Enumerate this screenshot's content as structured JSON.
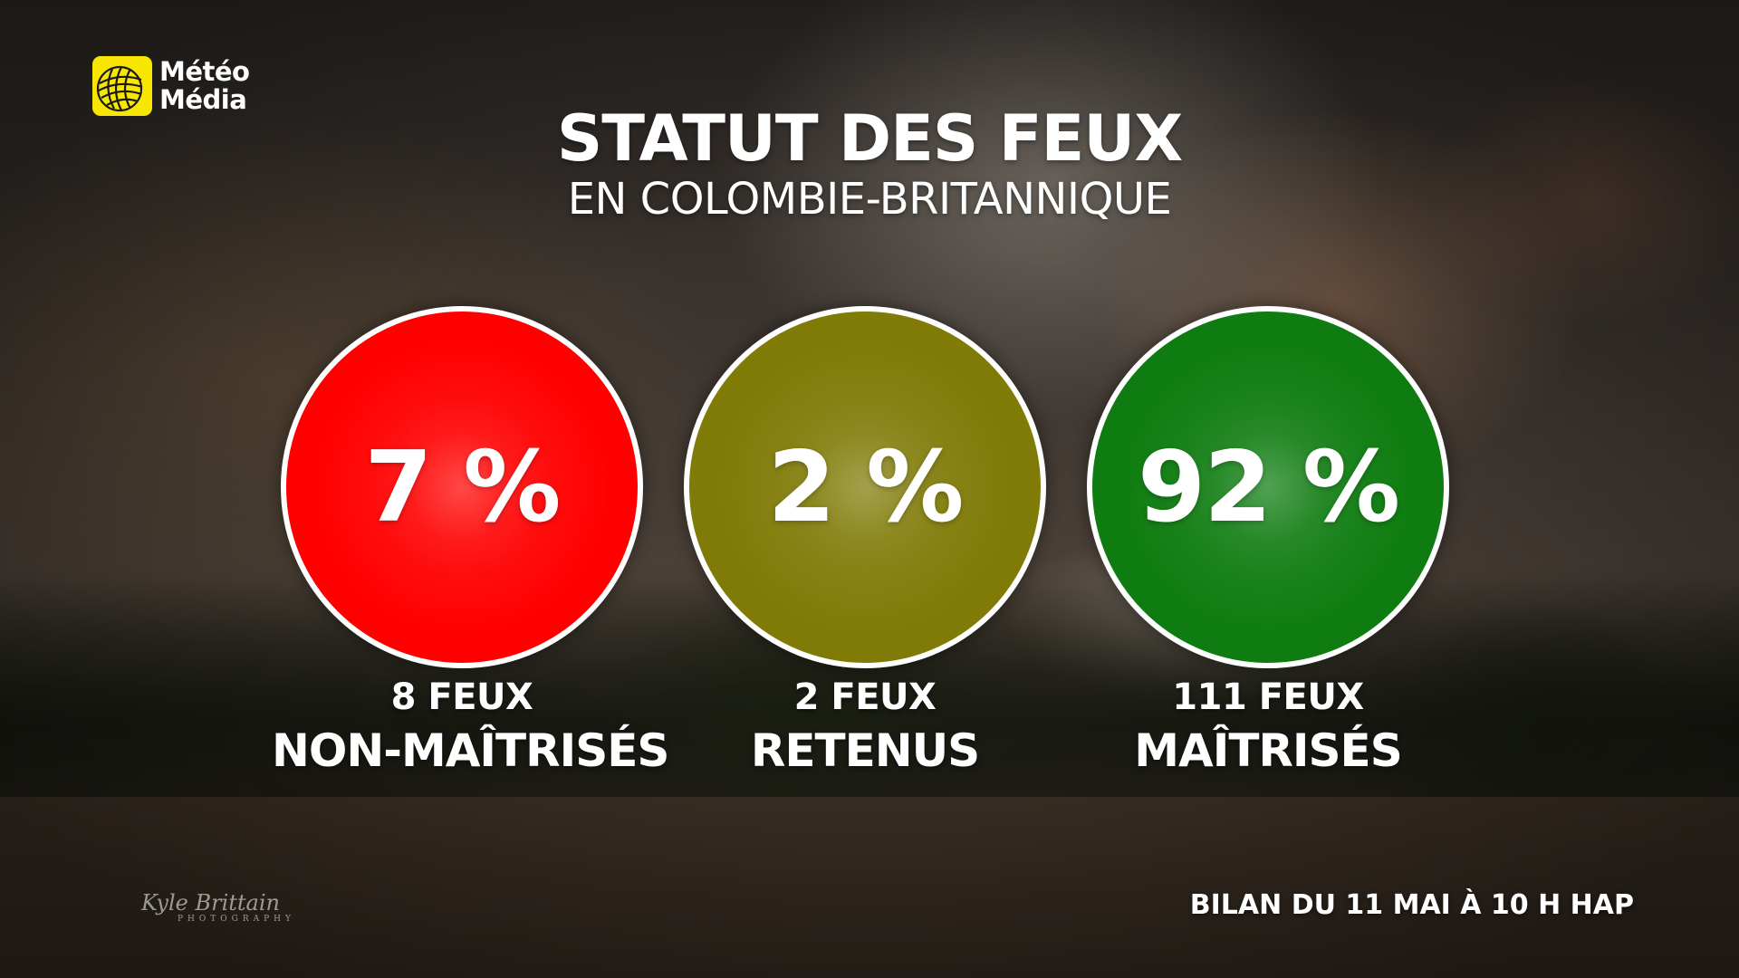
{
  "brand": {
    "line1": "Météo",
    "line2": "Média",
    "logo_color": "#f6e600"
  },
  "header": {
    "title": "STATUT DES FEUX",
    "subtitle": "EN COLOMBIE-BRITANNIQUE"
  },
  "stats": [
    {
      "percent": "7 %",
      "count": "8 FEUX",
      "label": "NON-MAÎTRISÉS",
      "color": "#ff0000"
    },
    {
      "percent": "2 %",
      "count": "2 FEUX",
      "label": "RETENUS",
      "color": "#807b07"
    },
    {
      "percent": "92 %",
      "count": "111 FEUX",
      "label": "MAÎTRISÉS",
      "color": "#0e7c10"
    }
  ],
  "photo_credit": {
    "name": "Kyle Brittain",
    "sub": "PHOTOGRAPHY"
  },
  "footer": {
    "timestamp": "BILAN DU 11 MAI À 10 H HAP"
  }
}
